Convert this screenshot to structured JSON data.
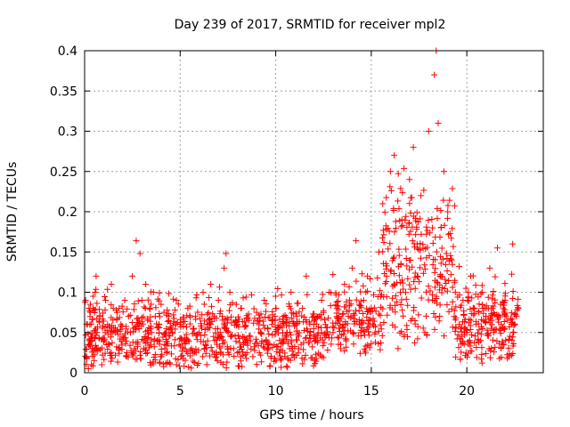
{
  "chart_data": {
    "type": "scatter",
    "title": "Day 239 of 2017, SRMTID for receiver mpl2",
    "xlabel": "GPS time / hours",
    "ylabel": "SRMTID / TECUs",
    "xlim": [
      0,
      24
    ],
    "ylim": [
      0,
      0.4
    ],
    "xticks": [
      0,
      5,
      10,
      15,
      20
    ],
    "xtick_labels": [
      "0",
      "5",
      "10",
      "15",
      "20"
    ],
    "yticks": [
      0,
      0.05,
      0.1,
      0.15,
      0.2,
      0.25,
      0.3,
      0.35,
      0.4
    ],
    "ytick_labels": [
      "0",
      "0.05",
      "0.1",
      "0.15",
      "0.2",
      "0.25",
      "0.3",
      "0.35",
      "0.4"
    ],
    "grid": true,
    "marker": "plus",
    "color": "#ff0000",
    "data_span_hours": [
      0,
      22.7
    ],
    "series": [
      {
        "name": "SRMTID",
        "points": [
          [
            0.05,
            0.09
          ],
          [
            0.1,
            0.02
          ],
          [
            0.15,
            0.06
          ],
          [
            0.2,
            0.005
          ],
          [
            0.25,
            0.04
          ],
          [
            0.3,
            0.085
          ],
          [
            0.35,
            0.01
          ],
          [
            0.4,
            0.03
          ],
          [
            0.45,
            0.08
          ],
          [
            0.5,
            0.015
          ],
          [
            0.55,
            0.1
          ],
          [
            0.6,
            0.12
          ],
          [
            0.65,
            0.05
          ],
          [
            0.7,
            0.03
          ],
          [
            0.8,
            0.07
          ],
          [
            0.9,
            0.01
          ],
          [
            1.0,
            0.04
          ],
          [
            1.1,
            0.09
          ],
          [
            1.2,
            0.06
          ],
          [
            1.3,
            0.035
          ],
          [
            1.4,
            0.11
          ],
          [
            1.5,
            0.08
          ],
          [
            1.6,
            0.05
          ],
          [
            1.7,
            0.075
          ],
          [
            1.8,
            0.03
          ],
          [
            1.9,
            0.06
          ],
          [
            2.0,
            0.045
          ],
          [
            2.1,
            0.09
          ],
          [
            2.2,
            0.02
          ],
          [
            2.3,
            0.07
          ],
          [
            2.4,
            0.05
          ],
          [
            2.5,
            0.12
          ],
          [
            2.6,
            0.03
          ],
          [
            2.7,
            0.164
          ],
          [
            2.8,
            0.06
          ],
          [
            2.9,
            0.148
          ],
          [
            3.0,
            0.09
          ],
          [
            3.1,
            0.04
          ],
          [
            3.2,
            0.11
          ],
          [
            3.3,
            0.065
          ],
          [
            3.4,
            0.08
          ],
          [
            3.5,
            0.05
          ],
          [
            3.6,
            0.1
          ],
          [
            3.7,
            0.07
          ],
          [
            3.8,
            0.04
          ],
          [
            3.9,
            0.06
          ],
          [
            4.0,
            0.085
          ],
          [
            4.2,
            0.03
          ],
          [
            4.4,
            0.07
          ],
          [
            4.6,
            0.05
          ],
          [
            4.8,
            0.09
          ],
          [
            5.0,
            0.06
          ],
          [
            5.2,
            0.04
          ],
          [
            5.4,
            0.08
          ],
          [
            5.6,
            0.03
          ],
          [
            5.8,
            0.07
          ],
          [
            6.0,
            0.05
          ],
          [
            6.2,
            0.1
          ],
          [
            6.4,
            0.06
          ],
          [
            6.6,
            0.11
          ],
          [
            6.8,
            0.04
          ],
          [
            7.0,
            0.09
          ],
          [
            7.2,
            0.07
          ],
          [
            7.3,
            0.13
          ],
          [
            7.4,
            0.148
          ],
          [
            7.5,
            0.05
          ],
          [
            7.6,
            0.1
          ],
          [
            7.8,
            0.03
          ],
          [
            8.0,
            0.06
          ],
          [
            8.2,
            0.08
          ],
          [
            8.4,
            0.04
          ],
          [
            8.6,
            0.065
          ],
          [
            8.8,
            0.02
          ],
          [
            9.0,
            0.075
          ],
          [
            9.2,
            0.05
          ],
          [
            9.4,
            0.09
          ],
          [
            9.6,
            0.03
          ],
          [
            9.8,
            0.06
          ],
          [
            10.0,
            0.08
          ],
          [
            10.2,
            0.04
          ],
          [
            10.4,
            0.07
          ],
          [
            10.6,
            0.05
          ],
          [
            10.8,
            0.1
          ],
          [
            11.0,
            0.06
          ],
          [
            11.2,
            0.03
          ],
          [
            11.4,
            0.08
          ],
          [
            11.6,
            0.12
          ],
          [
            11.8,
            0.05
          ],
          [
            12.0,
            0.07
          ],
          [
            12.2,
            0.04
          ],
          [
            12.4,
            0.09
          ],
          [
            12.6,
            0.06
          ],
          [
            12.8,
            0.1
          ],
          [
            13.0,
            0.05
          ],
          [
            13.2,
            0.08
          ],
          [
            13.4,
            0.03
          ],
          [
            13.6,
            0.11
          ],
          [
            13.8,
            0.07
          ],
          [
            14.0,
            0.13
          ],
          [
            14.2,
            0.164
          ],
          [
            14.4,
            0.06
          ],
          [
            14.6,
            0.09
          ],
          [
            14.8,
            0.12
          ],
          [
            15.0,
            0.08
          ],
          [
            15.2,
            0.05
          ],
          [
            15.4,
            0.15
          ],
          [
            15.6,
            0.21
          ],
          [
            15.8,
            0.12
          ],
          [
            16.0,
            0.25
          ],
          [
            16.2,
            0.27
          ],
          [
            16.4,
            0.03
          ],
          [
            16.6,
            0.19
          ],
          [
            16.8,
            0.1
          ],
          [
            17.0,
            0.24
          ],
          [
            17.2,
            0.28
          ],
          [
            17.4,
            0.16
          ],
          [
            17.6,
            0.22
          ],
          [
            17.8,
            0.05
          ],
          [
            18.0,
            0.3
          ],
          [
            18.2,
            0.18
          ],
          [
            18.3,
            0.37
          ],
          [
            18.4,
            0.4
          ],
          [
            18.5,
            0.31
          ],
          [
            18.6,
            0.12
          ],
          [
            18.8,
            0.25
          ],
          [
            19.0,
            0.2
          ],
          [
            19.2,
            0.14
          ],
          [
            19.4,
            0.1
          ],
          [
            19.6,
            0.06
          ],
          [
            19.8,
            0.09
          ],
          [
            20.0,
            0.05
          ],
          [
            20.2,
            0.12
          ],
          [
            20.4,
            0.08
          ],
          [
            20.6,
            0.04
          ],
          [
            20.8,
            0.1
          ],
          [
            21.0,
            0.07
          ],
          [
            21.2,
            0.13
          ],
          [
            21.4,
            0.05
          ],
          [
            21.6,
            0.155
          ],
          [
            21.8,
            0.06
          ],
          [
            22.0,
            0.09
          ],
          [
            22.2,
            0.04
          ],
          [
            22.4,
            0.16
          ],
          [
            22.6,
            0.07
          ]
        ]
      }
    ]
  }
}
